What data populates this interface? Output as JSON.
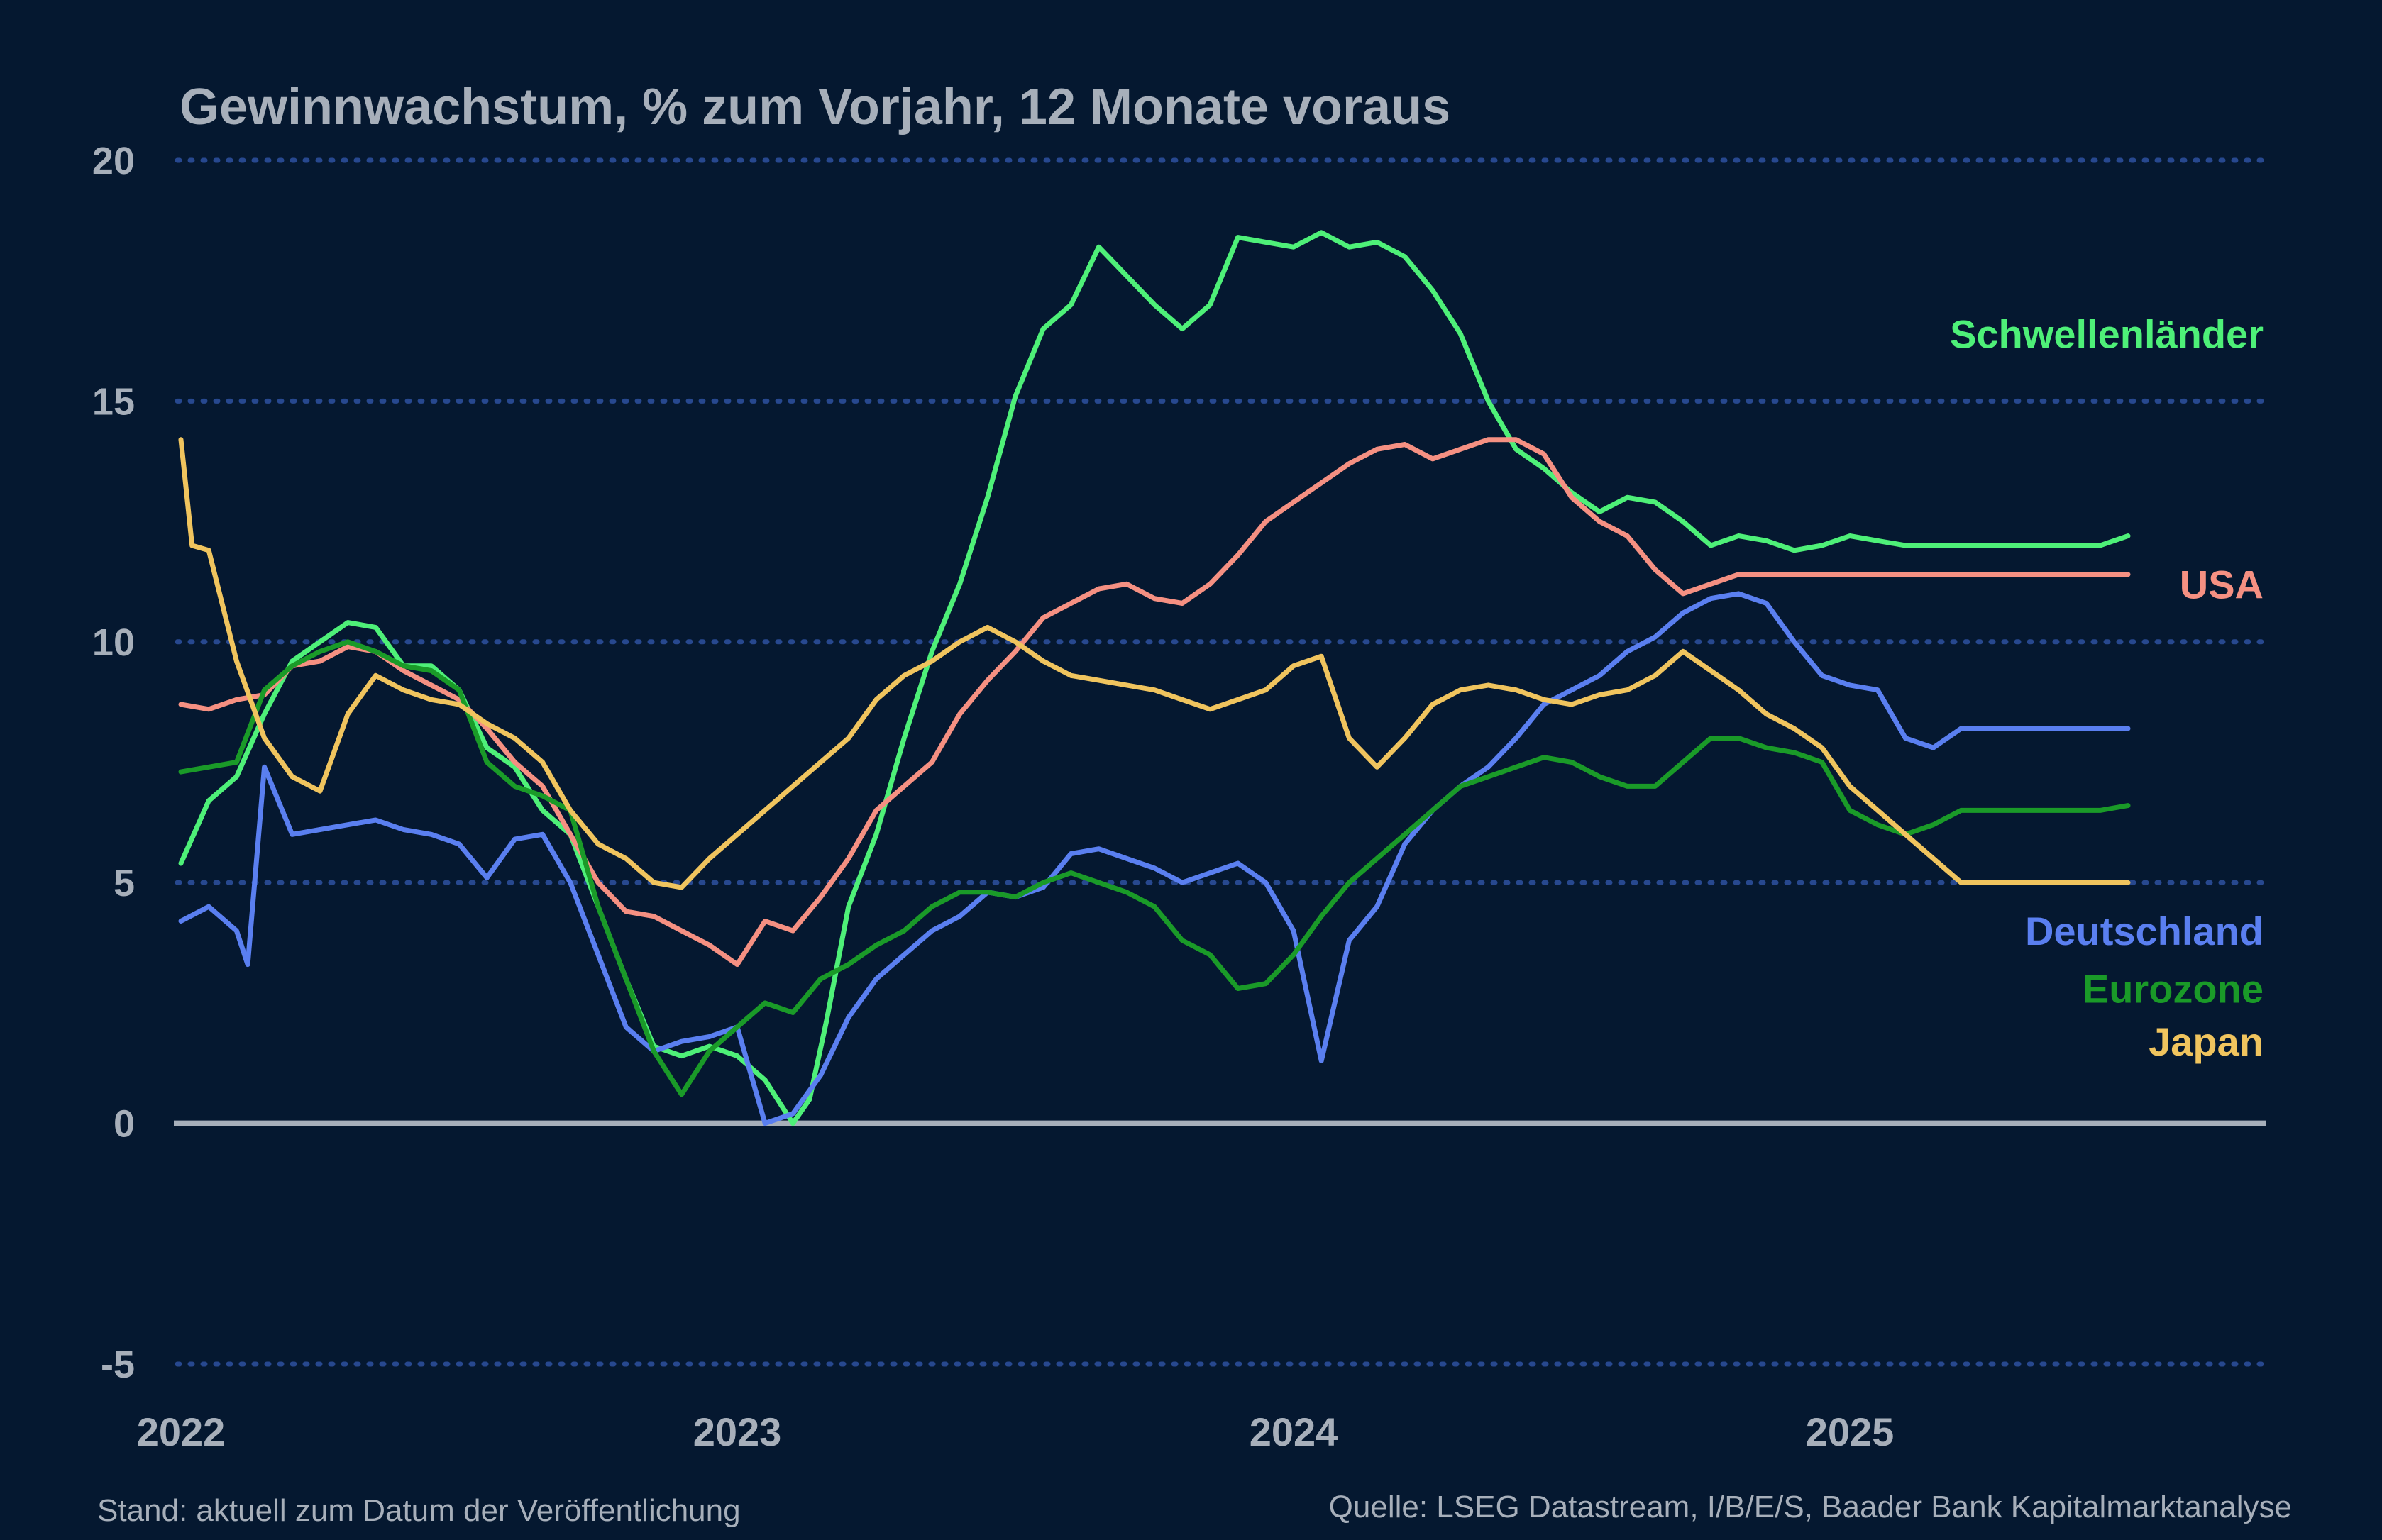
{
  "chart_data": {
    "type": "line",
    "title": "Gewinnwachstum, % zum Vorjahr, 12 Monate voraus",
    "xlabel": "",
    "ylabel": "",
    "x_ticks": [
      "2022",
      "2023",
      "2024",
      "2025"
    ],
    "x_range": [
      2022.0,
      2025.75
    ],
    "ylim": [
      -5,
      20
    ],
    "y_ticks": [
      "20",
      "15",
      "10",
      "5",
      "0",
      "-5"
    ],
    "grid": true,
    "legend": "direct labels at right end of lines",
    "series": [
      {
        "name": "Schwellenländer",
        "color": "#4ef078",
        "x": [
          2022.0,
          2022.05,
          2022.1,
          2022.15,
          2022.2,
          2022.25,
          2022.3,
          2022.35,
          2022.4,
          2022.45,
          2022.5,
          2022.55,
          2022.6,
          2022.65,
          2022.7,
          2022.75,
          2022.8,
          2022.85,
          2022.9,
          2022.95,
          2023.0,
          2023.05,
          2023.1,
          2023.13,
          2023.16,
          2023.2,
          2023.25,
          2023.3,
          2023.35,
          2023.4,
          2023.45,
          2023.5,
          2023.55,
          2023.6,
          2023.65,
          2023.7,
          2023.75,
          2023.8,
          2023.85,
          2023.9,
          2023.95,
          2024.0,
          2024.05,
          2024.1,
          2024.15,
          2024.2,
          2024.25,
          2024.3,
          2024.35,
          2024.4,
          2024.45,
          2024.5,
          2024.55,
          2024.6,
          2024.65,
          2024.7,
          2024.75,
          2024.8,
          2024.85,
          2024.9,
          2024.95,
          2025.0,
          2025.05,
          2025.1,
          2025.15,
          2025.2,
          2025.25,
          2025.3,
          2025.35,
          2025.4,
          2025.45,
          2025.5
        ],
        "values": [
          5.4,
          6.7,
          7.2,
          8.5,
          9.6,
          10.0,
          10.4,
          10.3,
          9.5,
          9.5,
          9.0,
          7.8,
          7.4,
          6.5,
          6.0,
          4.5,
          3.0,
          1.6,
          1.4,
          1.6,
          1.4,
          0.9,
          0.0,
          0.5,
          2.1,
          4.5,
          6.0,
          8.0,
          9.8,
          11.2,
          13.0,
          15.1,
          16.5,
          17.0,
          18.2,
          17.6,
          17.0,
          16.5,
          17.0,
          18.4,
          18.3,
          18.2,
          18.5,
          18.2,
          18.3,
          18.0,
          17.3,
          16.4,
          15.0,
          14.0,
          13.6,
          13.1,
          12.7,
          13.0,
          12.9,
          12.5,
          12.0,
          12.2,
          12.1,
          11.9,
          12.0,
          12.2,
          12.1,
          12.0,
          12.0,
          12.0,
          12.0,
          12.0,
          12.0,
          12.0,
          12.0,
          12.2
        ],
        "label_y": 16.4
      },
      {
        "name": "USA",
        "color": "#f59082",
        "x": [
          2022.0,
          2022.05,
          2022.1,
          2022.15,
          2022.2,
          2022.25,
          2022.3,
          2022.35,
          2022.4,
          2022.45,
          2022.5,
          2022.55,
          2022.6,
          2022.65,
          2022.7,
          2022.75,
          2022.8,
          2022.85,
          2022.9,
          2022.95,
          2023.0,
          2023.05,
          2023.1,
          2023.15,
          2023.2,
          2023.25,
          2023.3,
          2023.35,
          2023.4,
          2023.45,
          2023.5,
          2023.55,
          2023.6,
          2023.65,
          2023.7,
          2023.75,
          2023.8,
          2023.85,
          2023.9,
          2023.95,
          2024.0,
          2024.05,
          2024.1,
          2024.15,
          2024.2,
          2024.25,
          2024.3,
          2024.35,
          2024.4,
          2024.45,
          2024.5,
          2024.55,
          2024.6,
          2024.65,
          2024.7,
          2024.75,
          2024.8,
          2024.85,
          2024.9,
          2024.95,
          2025.0,
          2025.05,
          2025.1,
          2025.15,
          2025.2,
          2025.25,
          2025.3,
          2025.35,
          2025.4,
          2025.45,
          2025.5
        ],
        "values": [
          8.7,
          8.6,
          8.8,
          8.9,
          9.5,
          9.6,
          9.9,
          9.8,
          9.4,
          9.1,
          8.8,
          8.2,
          7.5,
          7.0,
          6.0,
          5.0,
          4.4,
          4.3,
          4.0,
          3.7,
          3.3,
          4.2,
          4.0,
          4.7,
          5.5,
          6.5,
          7.0,
          7.5,
          8.5,
          9.2,
          9.8,
          10.5,
          10.8,
          11.1,
          11.2,
          10.9,
          10.8,
          11.2,
          11.8,
          12.5,
          12.9,
          13.3,
          13.7,
          14.0,
          14.1,
          13.8,
          14.0,
          14.2,
          14.2,
          13.9,
          13.0,
          12.5,
          12.2,
          11.5,
          11.0,
          11.2,
          11.4,
          11.4,
          11.4,
          11.4,
          11.4,
          11.4,
          11.4,
          11.4,
          11.4,
          11.4,
          11.4,
          11.4,
          11.4,
          11.4,
          11.4
        ],
        "label_y": 11.2
      },
      {
        "name": "Deutschland",
        "color": "#5a7ff0",
        "x": [
          2022.0,
          2022.05,
          2022.1,
          2022.12,
          2022.15,
          2022.2,
          2022.25,
          2022.3,
          2022.35,
          2022.4,
          2022.45,
          2022.5,
          2022.55,
          2022.6,
          2022.65,
          2022.7,
          2022.75,
          2022.8,
          2022.85,
          2022.9,
          2022.95,
          2023.0,
          2023.05,
          2023.1,
          2023.15,
          2023.2,
          2023.25,
          2023.3,
          2023.35,
          2023.4,
          2023.45,
          2023.5,
          2023.55,
          2023.6,
          2023.65,
          2023.7,
          2023.75,
          2023.8,
          2023.85,
          2023.9,
          2023.95,
          2024.0,
          2024.05,
          2024.1,
          2024.15,
          2024.2,
          2024.25,
          2024.3,
          2024.35,
          2024.4,
          2024.45,
          2024.5,
          2024.55,
          2024.6,
          2024.65,
          2024.7,
          2024.75,
          2024.8,
          2024.85,
          2024.9,
          2024.95,
          2025.0,
          2025.05,
          2025.1,
          2025.15,
          2025.2,
          2025.25,
          2025.3,
          2025.35,
          2025.4,
          2025.45,
          2025.5
        ],
        "values": [
          4.2,
          4.5,
          4.0,
          3.3,
          7.4,
          6.0,
          6.1,
          6.2,
          6.3,
          6.1,
          6.0,
          5.8,
          5.1,
          5.9,
          6.0,
          5.0,
          3.5,
          2.0,
          1.5,
          1.7,
          1.8,
          2.0,
          0.0,
          0.2,
          1.0,
          2.2,
          3.0,
          3.5,
          4.0,
          4.3,
          4.8,
          4.7,
          4.9,
          5.6,
          5.7,
          5.5,
          5.3,
          5.0,
          5.2,
          5.4,
          5.0,
          4.0,
          1.3,
          3.8,
          4.5,
          5.8,
          6.5,
          7.0,
          7.4,
          8.0,
          8.7,
          9.0,
          9.3,
          9.8,
          10.1,
          10.6,
          10.9,
          11.0,
          10.8,
          10.0,
          9.3,
          9.1,
          9.0,
          8.0,
          7.8,
          8.2,
          8.2,
          8.2,
          8.2,
          8.2,
          8.2,
          8.2
        ],
        "label_y": 4.0
      },
      {
        "name": "Eurozone",
        "color": "#1a9a28",
        "x": [
          2022.0,
          2022.05,
          2022.1,
          2022.15,
          2022.2,
          2022.25,
          2022.3,
          2022.35,
          2022.4,
          2022.45,
          2022.5,
          2022.55,
          2022.6,
          2022.65,
          2022.7,
          2022.75,
          2022.8,
          2022.85,
          2022.9,
          2022.95,
          2023.0,
          2023.05,
          2023.1,
          2023.15,
          2023.2,
          2023.25,
          2023.3,
          2023.35,
          2023.4,
          2023.45,
          2023.5,
          2023.55,
          2023.6,
          2023.65,
          2023.7,
          2023.75,
          2023.8,
          2023.85,
          2023.9,
          2023.95,
          2024.0,
          2024.05,
          2024.1,
          2024.15,
          2024.2,
          2024.25,
          2024.3,
          2024.35,
          2024.4,
          2024.45,
          2024.5,
          2024.55,
          2024.6,
          2024.65,
          2024.7,
          2024.75,
          2024.8,
          2024.85,
          2024.9,
          2024.95,
          2025.0,
          2025.05,
          2025.1,
          2025.15,
          2025.2,
          2025.25,
          2025.3,
          2025.35,
          2025.4,
          2025.45,
          2025.5
        ],
        "values": [
          7.3,
          7.4,
          7.5,
          9.0,
          9.5,
          9.8,
          10.0,
          9.8,
          9.5,
          9.4,
          9.0,
          7.5,
          7.0,
          6.8,
          6.5,
          4.5,
          3.0,
          1.5,
          0.6,
          1.5,
          2.0,
          2.5,
          2.3,
          3.0,
          3.3,
          3.7,
          4.0,
          4.5,
          4.8,
          4.8,
          4.7,
          5.0,
          5.2,
          5.0,
          4.8,
          4.5,
          3.8,
          3.5,
          2.8,
          2.9,
          3.5,
          4.3,
          5.0,
          5.5,
          6.0,
          6.5,
          7.0,
          7.2,
          7.4,
          7.6,
          7.5,
          7.2,
          7.0,
          7.0,
          7.5,
          8.0,
          8.0,
          7.8,
          7.7,
          7.5,
          6.5,
          6.2,
          6.0,
          6.2,
          6.5,
          6.5,
          6.5,
          6.5,
          6.5,
          6.5,
          6.6
        ],
        "label_y": 2.8
      },
      {
        "name": "Japan",
        "color": "#f0c45e",
        "x": [
          2022.0,
          2022.02,
          2022.05,
          2022.1,
          2022.15,
          2022.2,
          2022.25,
          2022.3,
          2022.35,
          2022.4,
          2022.45,
          2022.5,
          2022.55,
          2022.6,
          2022.65,
          2022.7,
          2022.75,
          2022.8,
          2022.85,
          2022.9,
          2022.95,
          2023.0,
          2023.05,
          2023.1,
          2023.15,
          2023.2,
          2023.25,
          2023.3,
          2023.35,
          2023.4,
          2023.45,
          2023.5,
          2023.55,
          2023.6,
          2023.65,
          2023.7,
          2023.75,
          2023.8,
          2023.85,
          2023.9,
          2023.95,
          2024.0,
          2024.05,
          2024.1,
          2024.15,
          2024.2,
          2024.25,
          2024.3,
          2024.35,
          2024.4,
          2024.45,
          2024.5,
          2024.55,
          2024.6,
          2024.65,
          2024.7,
          2024.75,
          2024.8,
          2024.85,
          2024.9,
          2024.95,
          2025.0,
          2025.05,
          2025.1,
          2025.15,
          2025.2,
          2025.25,
          2025.3,
          2025.35,
          2025.4,
          2025.45,
          2025.5
        ],
        "values": [
          14.2,
          12.0,
          11.9,
          9.6,
          8.0,
          7.2,
          6.9,
          8.5,
          9.3,
          9.0,
          8.8,
          8.7,
          8.3,
          8.0,
          7.5,
          6.5,
          5.8,
          5.5,
          5.0,
          4.9,
          5.5,
          6.0,
          6.5,
          7.0,
          7.5,
          8.0,
          8.8,
          9.3,
          9.6,
          10.0,
          10.3,
          10.0,
          9.6,
          9.3,
          9.2,
          9.1,
          9.0,
          8.8,
          8.6,
          8.8,
          9.0,
          9.5,
          9.7,
          8.0,
          7.4,
          8.0,
          8.7,
          9.0,
          9.1,
          9.0,
          8.8,
          8.7,
          8.9,
          9.0,
          9.3,
          9.8,
          9.4,
          9.0,
          8.5,
          8.2,
          7.8,
          7.0,
          6.5,
          6.0,
          5.5,
          5.0,
          5.0,
          5.0,
          5.0,
          5.0,
          5.0,
          5.0
        ],
        "label_y": 1.7
      }
    ],
    "footer_left": "Stand: aktuell zum Datum der Veröffentlichung",
    "footer_right": "Quelle: LSEG Datastream, I/B/E/S, Baader Bank Kapitalmarktanalyse"
  }
}
